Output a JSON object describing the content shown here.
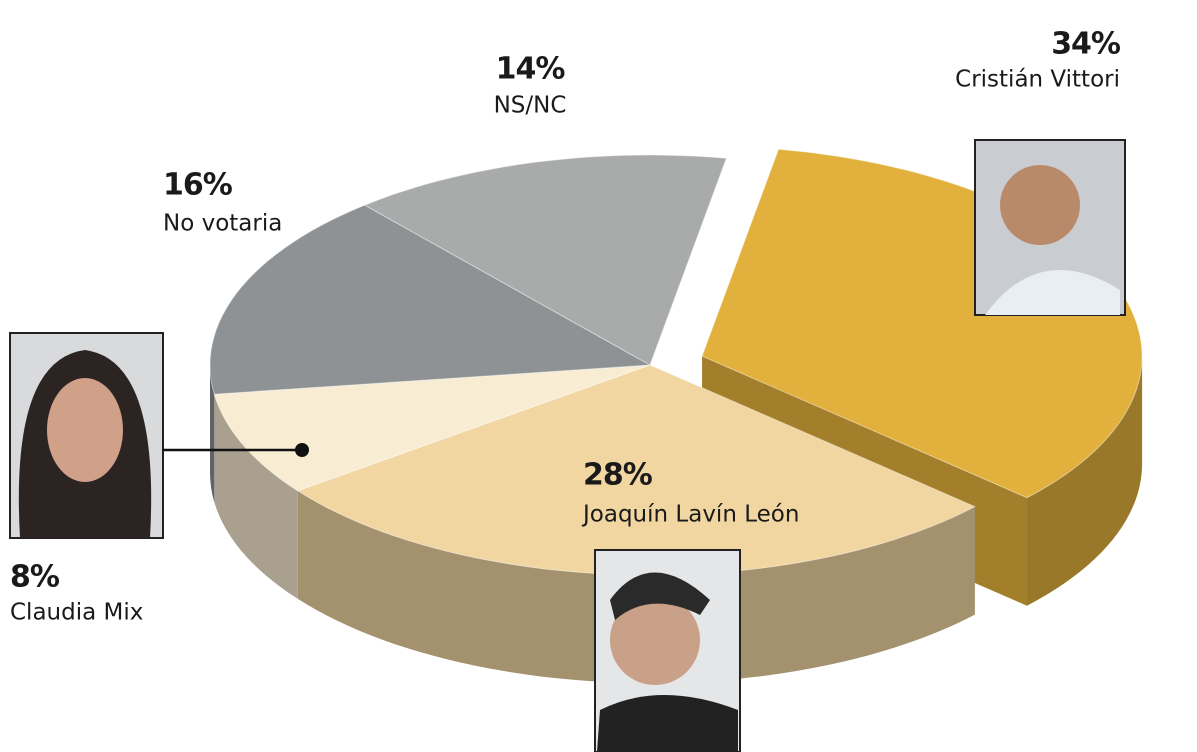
{
  "chart_data": {
    "type": "pie",
    "categories": [
      "Cristián Vittori",
      "Joaquín Lavín León",
      "Claudia Mix",
      "No votaria",
      "NS/NC"
    ],
    "values": [
      34,
      28,
      8,
      16,
      14
    ],
    "value_labels": [
      "34%",
      "28%",
      "8%",
      "16%",
      "14%"
    ],
    "colors": [
      "#e2b03c",
      "#f1d6a2",
      "#f8ecd2",
      "#8f9294",
      "#a9abab"
    ]
  }
}
